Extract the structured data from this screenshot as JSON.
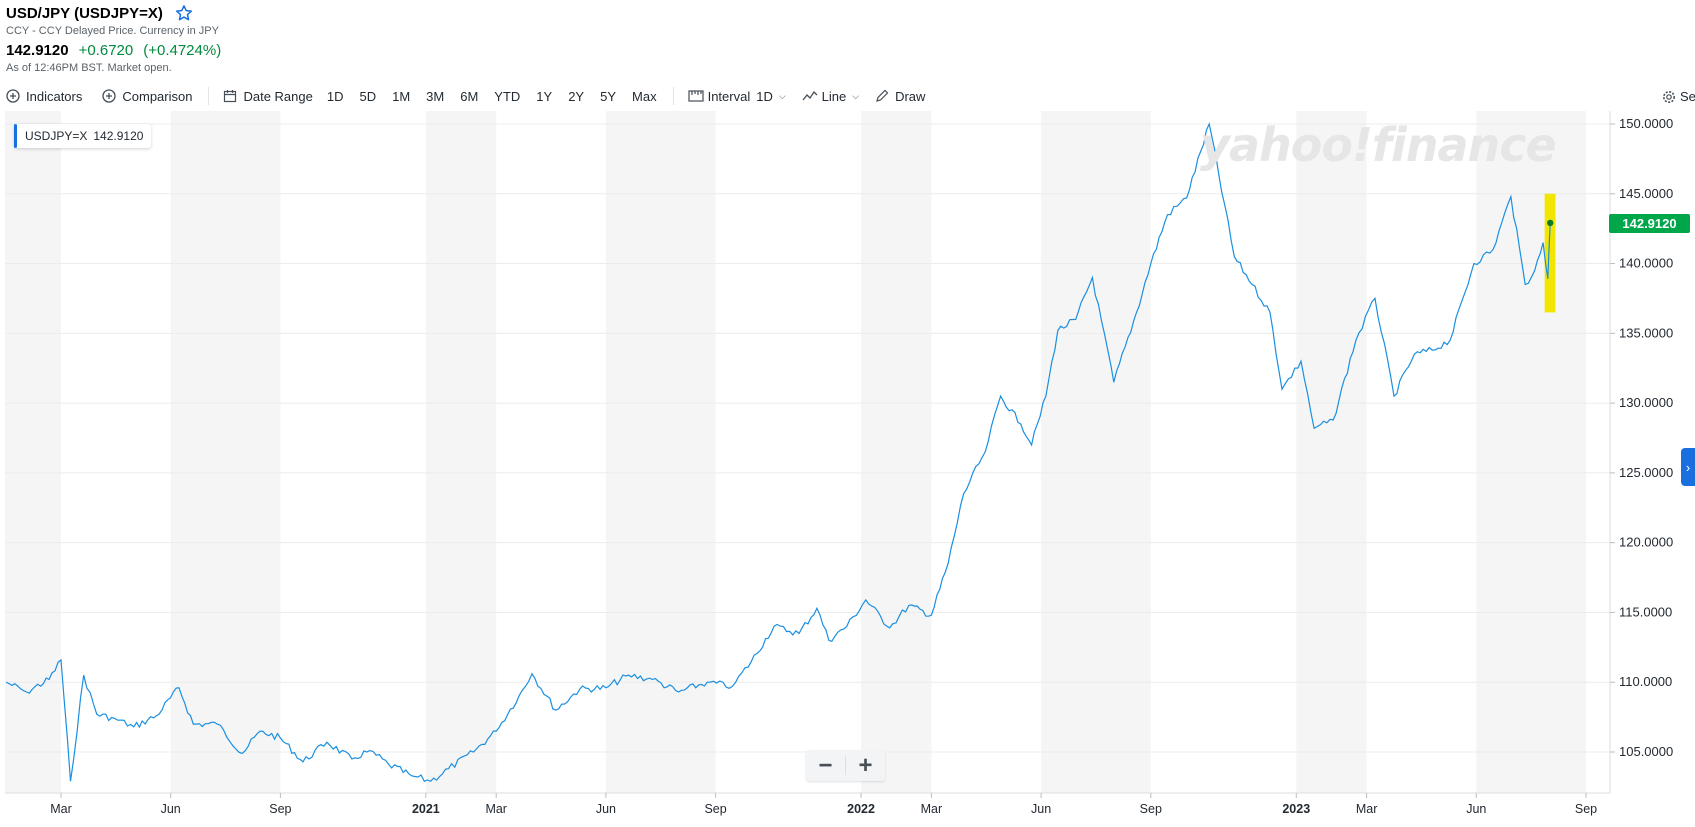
{
  "header": {
    "title": "USD/JPY (USDJPY=X)",
    "subtitle": "CCY - CCY Delayed Price. Currency in JPY",
    "price": "142.9120",
    "change": "+0.6720",
    "change_pct": "(+0.4724%)",
    "status": "As of 12:46PM BST. Market open."
  },
  "toolbar": {
    "indicators": "Indicators",
    "comparison": "Comparison",
    "date_range": "Date Range",
    "ranges": [
      "1D",
      "5D",
      "1M",
      "3M",
      "6M",
      "YTD",
      "1Y",
      "2Y",
      "5Y",
      "Max"
    ],
    "interval_label": "Interval",
    "interval_value": "1D",
    "chart_type": "Line",
    "draw": "Draw",
    "settings": "Se"
  },
  "legend": {
    "symbol": "USDJPY=X",
    "value": "142.9120"
  },
  "price_flag": "142.9120",
  "watermark": "yahoo!finance",
  "zoom": {
    "minus": "−",
    "plus": "+"
  },
  "colors": {
    "line": "#1a8fe0",
    "positive": "#008a3f",
    "flag": "#00a64a",
    "highlight": "#f2e600"
  },
  "chart_data": {
    "type": "line",
    "title": "",
    "xlabel": "",
    "ylabel": "",
    "y_axis_position": "right",
    "ylim": [
      102.8,
      150.8
    ],
    "y_ticks": [
      "105.0000",
      "110.0000",
      "115.0000",
      "120.0000",
      "125.0000",
      "130.0000",
      "135.0000",
      "140.0000",
      "145.0000",
      "150.0000"
    ],
    "x_ticks": [
      {
        "label": "Mar",
        "date": "2020-03-01"
      },
      {
        "label": "Jun",
        "date": "2020-06-01"
      },
      {
        "label": "Sep",
        "date": "2020-09-01"
      },
      {
        "label": "2021",
        "date": "2021-01-01",
        "bold": true
      },
      {
        "label": "Mar",
        "date": "2021-03-01"
      },
      {
        "label": "Jun",
        "date": "2021-06-01"
      },
      {
        "label": "Sep",
        "date": "2021-09-01"
      },
      {
        "label": "2022",
        "date": "2022-01-01",
        "bold": true
      },
      {
        "label": "Mar",
        "date": "2022-03-01"
      },
      {
        "label": "Jun",
        "date": "2022-06-01"
      },
      {
        "label": "Sep",
        "date": "2022-09-01"
      },
      {
        "label": "2023",
        "date": "2023-01-01",
        "bold": true
      },
      {
        "label": "Mar",
        "date": "2023-03-01"
      },
      {
        "label": "Jun",
        "date": "2023-06-01"
      },
      {
        "label": "Sep",
        "date": "2023-09-01"
      }
    ],
    "grid": true,
    "series": [
      {
        "name": "USDJPY=X",
        "points": [
          [
            "2020-01-15",
            110.0
          ],
          [
            "2020-02-01",
            109.3
          ],
          [
            "2020-02-20",
            110.2
          ],
          [
            "2020-03-01",
            111.6
          ],
          [
            "2020-03-09",
            102.9
          ],
          [
            "2020-03-20",
            110.5
          ],
          [
            "2020-03-31",
            107.7
          ],
          [
            "2020-04-15",
            107.4
          ],
          [
            "2020-05-01",
            106.8
          ],
          [
            "2020-05-20",
            107.6
          ],
          [
            "2020-06-08",
            109.6
          ],
          [
            "2020-06-20",
            107.0
          ],
          [
            "2020-07-10",
            107.0
          ],
          [
            "2020-07-31",
            104.9
          ],
          [
            "2020-08-15",
            106.5
          ],
          [
            "2020-09-01",
            106.0
          ],
          [
            "2020-09-20",
            104.3
          ],
          [
            "2020-10-10",
            105.7
          ],
          [
            "2020-10-31",
            104.5
          ],
          [
            "2020-11-15",
            105.1
          ],
          [
            "2020-12-01",
            104.1
          ],
          [
            "2020-12-20",
            103.3
          ],
          [
            "2021-01-05",
            102.9
          ],
          [
            "2021-01-20",
            103.8
          ],
          [
            "2021-02-10",
            105.0
          ],
          [
            "2021-03-01",
            106.5
          ],
          [
            "2021-03-20",
            109.0
          ],
          [
            "2021-03-31",
            110.6
          ],
          [
            "2021-04-20",
            108.0
          ],
          [
            "2021-05-10",
            109.5
          ],
          [
            "2021-06-01",
            109.6
          ],
          [
            "2021-06-20",
            110.5
          ],
          [
            "2021-07-10",
            110.2
          ],
          [
            "2021-08-01",
            109.3
          ],
          [
            "2021-08-25",
            110.0
          ],
          [
            "2021-09-15",
            109.7
          ],
          [
            "2021-10-01",
            111.5
          ],
          [
            "2021-10-20",
            114.0
          ],
          [
            "2021-11-10",
            113.5
          ],
          [
            "2021-11-25",
            115.3
          ],
          [
            "2021-12-05",
            113.0
          ],
          [
            "2021-12-20",
            114.0
          ],
          [
            "2022-01-05",
            115.9
          ],
          [
            "2022-01-25",
            113.9
          ],
          [
            "2022-02-10",
            115.5
          ],
          [
            "2022-03-01",
            114.8
          ],
          [
            "2022-03-15",
            118.5
          ],
          [
            "2022-03-28",
            123.5
          ],
          [
            "2022-04-15",
            126.5
          ],
          [
            "2022-04-28",
            130.5
          ],
          [
            "2022-05-15",
            128.5
          ],
          [
            "2022-05-24",
            127.0
          ],
          [
            "2022-06-05",
            130.5
          ],
          [
            "2022-06-15",
            135.2
          ],
          [
            "2022-06-30",
            136.0
          ],
          [
            "2022-07-14",
            139.0
          ],
          [
            "2022-08-01",
            131.5
          ],
          [
            "2022-08-20",
            136.5
          ],
          [
            "2022-09-01",
            140.0
          ],
          [
            "2022-09-15",
            143.5
          ],
          [
            "2022-10-01",
            144.7
          ],
          [
            "2022-10-20",
            150.0
          ],
          [
            "2022-11-10",
            140.5
          ],
          [
            "2022-11-25",
            138.5
          ],
          [
            "2022-12-10",
            136.5
          ],
          [
            "2022-12-20",
            131.0
          ],
          [
            "2023-01-05",
            133.0
          ],
          [
            "2023-01-16",
            128.2
          ],
          [
            "2023-02-01",
            128.8
          ],
          [
            "2023-02-20",
            134.5
          ],
          [
            "2023-03-08",
            137.5
          ],
          [
            "2023-03-24",
            130.5
          ],
          [
            "2023-04-10",
            133.5
          ],
          [
            "2023-04-25",
            133.8
          ],
          [
            "2023-05-10",
            134.5
          ],
          [
            "2023-05-30",
            140.0
          ],
          [
            "2023-06-15",
            141.0
          ],
          [
            "2023-06-30",
            144.8
          ],
          [
            "2023-07-12",
            138.5
          ],
          [
            "2023-07-20",
            139.5
          ],
          [
            "2023-07-27",
            141.5
          ],
          [
            "2023-07-31",
            138.9
          ],
          [
            "2023-08-02",
            142.9
          ]
        ]
      }
    ],
    "last_value": 142.912,
    "highlight_band": {
      "from_date": "2023-07-30",
      "to_date": "2023-08-03",
      "low": 136.5,
      "high": 145.0
    }
  }
}
